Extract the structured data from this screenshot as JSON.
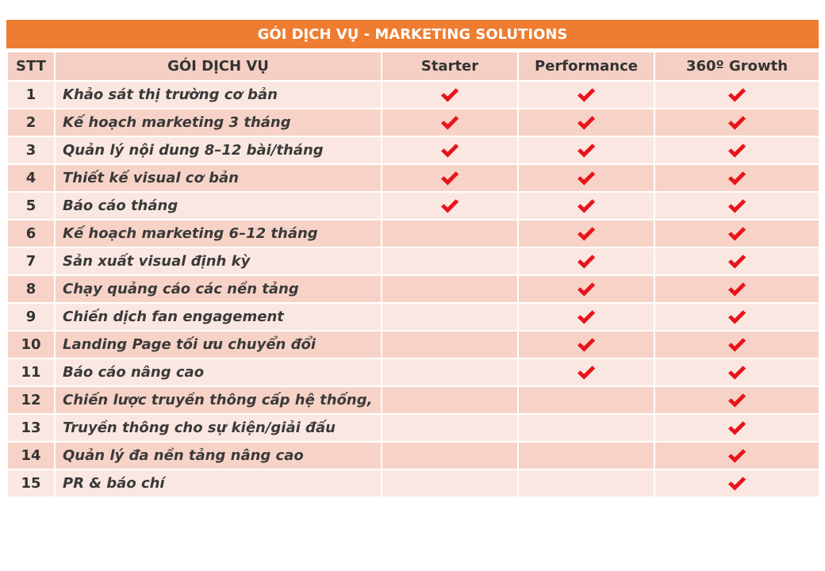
{
  "title": "GÓI DỊCH VỤ - MARKETING  SOLUTIONS",
  "headers": {
    "stt": "STT",
    "service": "GÓI DỊCH VỤ",
    "starter": "Starter",
    "performance": "Performance",
    "growth": "360º Growth"
  },
  "check_color": "#e8141c",
  "check_icon": "check-mark-icon",
  "rows": [
    {
      "stt": "1",
      "service": "Khảo sát thị trường cơ bản",
      "starter": true,
      "performance": true,
      "growth": true
    },
    {
      "stt": "2",
      "service": "Kế hoạch marketing 3 tháng",
      "starter": true,
      "performance": true,
      "growth": true
    },
    {
      "stt": "3",
      "service": "Quản lý nội dung 8–12 bài/tháng",
      "starter": true,
      "performance": true,
      "growth": true
    },
    {
      "stt": "4",
      "service": "Thiết kế visual cơ bản",
      "starter": true,
      "performance": true,
      "growth": true
    },
    {
      "stt": "5",
      "service": "Báo cáo tháng",
      "starter": true,
      "performance": true,
      "growth": true
    },
    {
      "stt": "6",
      "service": "Kế hoạch marketing 6–12 tháng",
      "starter": false,
      "performance": true,
      "growth": true
    },
    {
      "stt": "7",
      "service": "Sản xuất visual định kỳ",
      "starter": false,
      "performance": true,
      "growth": true
    },
    {
      "stt": "8",
      "service": "Chạy quảng cáo các nền tảng",
      "starter": false,
      "performance": true,
      "growth": true
    },
    {
      "stt": "9",
      "service": "Chiến dịch fan engagement",
      "starter": false,
      "performance": true,
      "growth": true
    },
    {
      "stt": "10",
      "service": "Landing Page tối ưu chuyển đổi",
      "starter": false,
      "performance": true,
      "growth": true
    },
    {
      "stt": "11",
      "service": "Báo cáo nâng cao",
      "starter": false,
      "performance": true,
      "growth": true
    },
    {
      "stt": "12",
      "service": "Chiến lược truyền thông cấp hệ thống,",
      "starter": false,
      "performance": false,
      "growth": true
    },
    {
      "stt": "13",
      "service": "Truyền thông cho sự kiện/giải đấu",
      "starter": false,
      "performance": false,
      "growth": true
    },
    {
      "stt": "14",
      "service": "Quản lý đa nền tảng nâng cao",
      "starter": false,
      "performance": false,
      "growth": true
    },
    {
      "stt": "15",
      "service": "PR & báo chí",
      "starter": false,
      "performance": false,
      "growth": true
    }
  ]
}
